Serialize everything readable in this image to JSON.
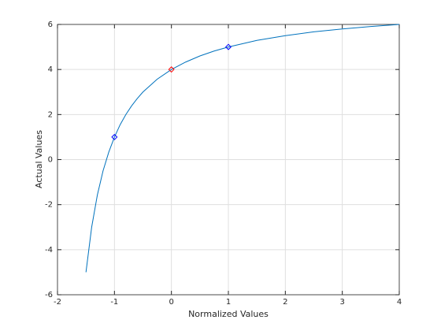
{
  "chart_data": {
    "type": "line",
    "xlabel": "Normalized Values",
    "ylabel": "Actual Values",
    "xlim": [
      -2,
      4
    ],
    "xticks": [
      -2,
      -1,
      0,
      1,
      2,
      3,
      4
    ],
    "ylim": [
      -6,
      6
    ],
    "yticks": [
      -6,
      -4,
      -2,
      0,
      2,
      4,
      6
    ],
    "grid": true,
    "series": [
      {
        "color": "#0072bd",
        "marker": "none",
        "x": [
          -1.5,
          -1.4,
          -1.3,
          -1.2,
          -1.1,
          -1,
          -0.9,
          -0.8,
          -0.7,
          -0.6,
          -0.5,
          -0.25,
          0,
          0.25,
          0.5,
          0.75,
          1,
          1.5,
          2,
          2.5,
          3,
          3.5,
          4
        ],
        "values": [
          -5,
          -3,
          -1.57,
          -0.5,
          0.33,
          1,
          1.55,
          2,
          2.38,
          2.71,
          3,
          3.57,
          4,
          4.33,
          4.6,
          4.82,
          5,
          5.29,
          5.5,
          5.67,
          5.8,
          5.91,
          6
        ]
      },
      {
        "color": "#0000ff",
        "marker": "diamond",
        "x": [
          -1,
          1
        ],
        "values": [
          1,
          5
        ]
      },
      {
        "color": "#ff0000",
        "marker": "diamond",
        "x": [
          0
        ],
        "values": [
          4
        ]
      }
    ]
  }
}
